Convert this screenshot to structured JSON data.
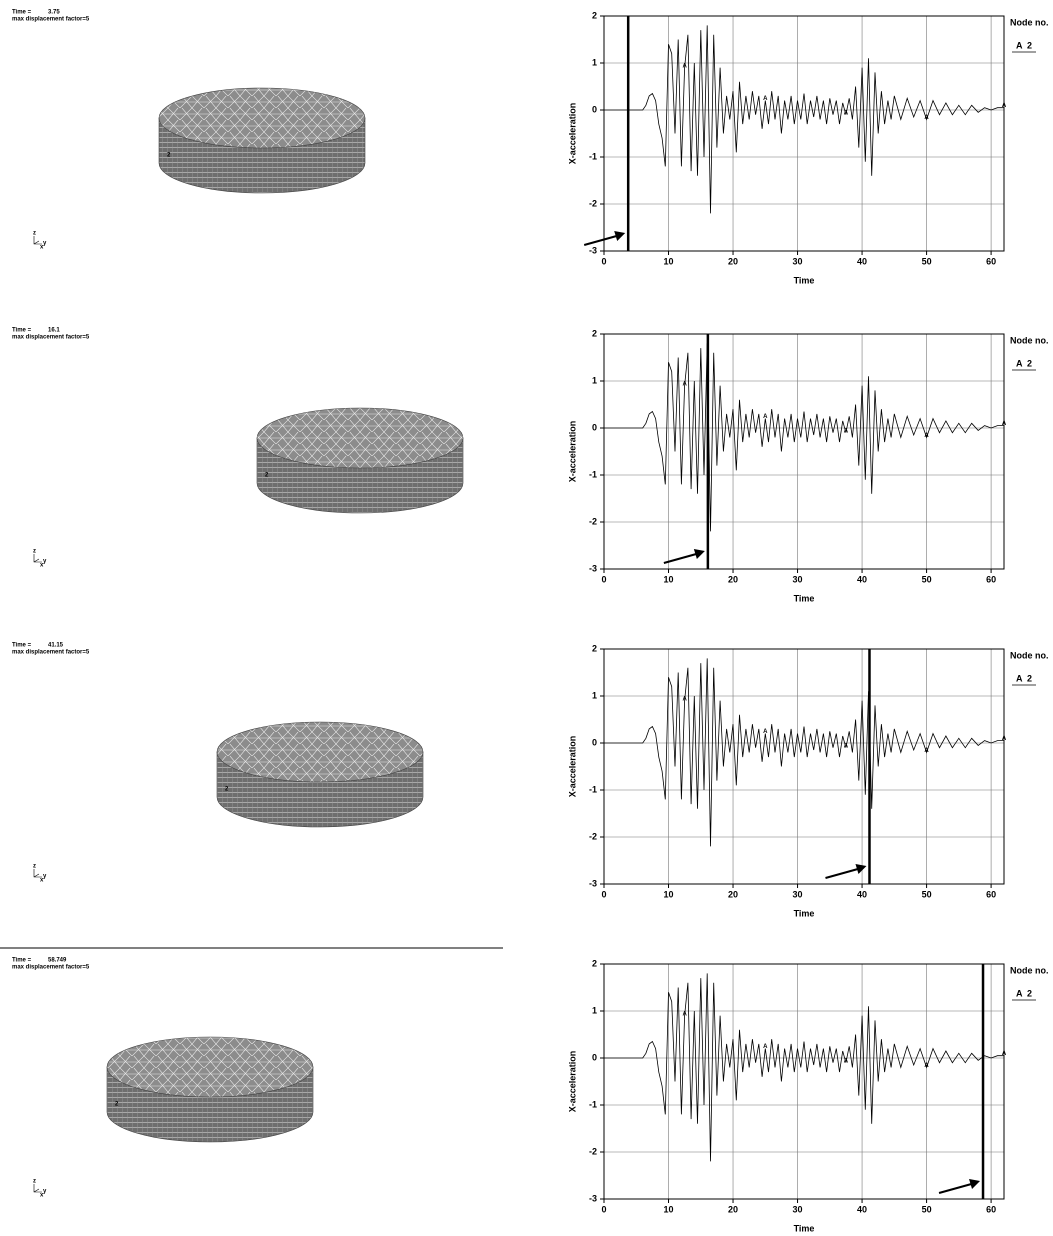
{
  "views": [
    {
      "time_label": "Time =",
      "factor_label": "max displacement factor=5",
      "node_label": "2",
      "triad": [
        "z",
        "y",
        "x"
      ]
    },
    {
      "time_label": "Time =",
      "factor_label": "max displacement factor=5",
      "node_label": "2",
      "triad": [
        "z",
        "y",
        "x"
      ]
    },
    {
      "time_label": "Time =",
      "factor_label": "max displacement factor=5",
      "node_label": "2",
      "triad": [
        "z",
        "y",
        "x"
      ]
    },
    {
      "time_label": "Time =",
      "factor_label": "max displacement factor=5",
      "node_label": "2",
      "triad": [
        "z",
        "y",
        "x"
      ]
    }
  ],
  "chart_data": [
    {
      "type": "line",
      "xlabel": "Time",
      "ylabel": "X-acceleration",
      "legend_title": "Node no.",
      "marker": "A",
      "time_marker": 3.75,
      "xlim": [
        0,
        62
      ],
      "ylim": [
        -3,
        2
      ],
      "xticks": [
        0,
        10,
        20,
        30,
        40,
        50,
        60
      ],
      "yticks": [
        -3,
        -2,
        -1,
        0,
        1,
        2
      ],
      "grid": true,
      "x": [
        0,
        2,
        4,
        6,
        6.5,
        7,
        7.5,
        8,
        8.5,
        9,
        9.5,
        10,
        10.5,
        11,
        11.5,
        12,
        12.5,
        13,
        13.5,
        14,
        14.5,
        15,
        15.5,
        16,
        16.5,
        17,
        17.5,
        18,
        18.5,
        19,
        19.5,
        20,
        20.5,
        21,
        21.5,
        22,
        22.5,
        23,
        23.5,
        24,
        24.5,
        25,
        25.5,
        26,
        26.5,
        27,
        27.5,
        28,
        28.5,
        29,
        29.5,
        30,
        30.5,
        31,
        31.5,
        32,
        32.5,
        33,
        33.5,
        34,
        34.5,
        35,
        35.5,
        36,
        36.5,
        37,
        37.5,
        38,
        38.5,
        39,
        39.5,
        40,
        40.5,
        41,
        41.5,
        42,
        42.5,
        43,
        43.5,
        44,
        44.5,
        45,
        46,
        47,
        48,
        49,
        50,
        51,
        52,
        53,
        54,
        55,
        56,
        57,
        58,
        59,
        60,
        61,
        62
      ],
      "series": [
        {
          "name": "2",
          "color": "#000000",
          "values": [
            0,
            0,
            0,
            0,
            0.1,
            0.3,
            0.35,
            0.2,
            -0.3,
            -0.6,
            -1.2,
            1.4,
            1.2,
            -0.5,
            1.5,
            -1.2,
            0.9,
            1.6,
            -1.3,
            1.0,
            -1.4,
            1.7,
            -1.0,
            1.8,
            -2.2,
            1.6,
            -0.8,
            0.9,
            -0.5,
            0.3,
            -0.2,
            0.4,
            -0.9,
            0.6,
            -0.3,
            0.3,
            -0.2,
            0.4,
            -0.1,
            0.3,
            -0.4,
            0.2,
            -0.3,
            0.4,
            -0.2,
            0.3,
            -0.5,
            0.2,
            -0.2,
            0.3,
            -0.3,
            0.2,
            -0.2,
            0.35,
            -0.3,
            0.2,
            -0.15,
            0.3,
            -0.2,
            0.2,
            -0.3,
            0.25,
            -0.1,
            0.2,
            -0.3,
            0.15,
            -0.1,
            0.25,
            -0.2,
            0.5,
            -0.8,
            0.9,
            -1.1,
            1.1,
            -1.4,
            0.8,
            -0.5,
            0.4,
            -0.3,
            0.2,
            -0.2,
            0.3,
            -0.2,
            0.25,
            -0.15,
            0.2,
            -0.2,
            0.2,
            -0.1,
            0.15,
            -0.1,
            0.1,
            -0.1,
            0.1,
            -0.05,
            0.05,
            0,
            0.05,
            0.05
          ]
        }
      ]
    },
    {
      "type": "line",
      "xlabel": "Time",
      "ylabel": "X-acceleration",
      "legend_title": "Node no.",
      "marker": "A",
      "time_marker": 16.1,
      "xlim": [
        0,
        62
      ],
      "ylim": [
        -3,
        2
      ],
      "xticks": [
        0,
        10,
        20,
        30,
        40,
        50,
        60
      ],
      "yticks": [
        -3,
        -2,
        -1,
        0,
        1,
        2
      ],
      "grid": true,
      "x": [
        0,
        2,
        4,
        6,
        6.5,
        7,
        7.5,
        8,
        8.5,
        9,
        9.5,
        10,
        10.5,
        11,
        11.5,
        12,
        12.5,
        13,
        13.5,
        14,
        14.5,
        15,
        15.5,
        16,
        16.5,
        17,
        17.5,
        18,
        18.5,
        19,
        19.5,
        20,
        20.5,
        21,
        21.5,
        22,
        22.5,
        23,
        23.5,
        24,
        24.5,
        25,
        25.5,
        26,
        26.5,
        27,
        27.5,
        28,
        28.5,
        29,
        29.5,
        30,
        30.5,
        31,
        31.5,
        32,
        32.5,
        33,
        33.5,
        34,
        34.5,
        35,
        35.5,
        36,
        36.5,
        37,
        37.5,
        38,
        38.5,
        39,
        39.5,
        40,
        40.5,
        41,
        41.5,
        42,
        42.5,
        43,
        43.5,
        44,
        44.5,
        45,
        46,
        47,
        48,
        49,
        50,
        51,
        52,
        53,
        54,
        55,
        56,
        57,
        58,
        59,
        60,
        61,
        62
      ],
      "series": [
        {
          "name": "2",
          "color": "#000000",
          "values": [
            0,
            0,
            0,
            0,
            0.1,
            0.3,
            0.35,
            0.2,
            -0.3,
            -0.6,
            -1.2,
            1.4,
            1.2,
            -0.5,
            1.5,
            -1.2,
            0.9,
            1.6,
            -1.3,
            1.0,
            -1.4,
            1.7,
            -1.0,
            1.8,
            -2.2,
            1.6,
            -0.8,
            0.9,
            -0.5,
            0.3,
            -0.2,
            0.4,
            -0.9,
            0.6,
            -0.3,
            0.3,
            -0.2,
            0.4,
            -0.1,
            0.3,
            -0.4,
            0.2,
            -0.3,
            0.4,
            -0.2,
            0.3,
            -0.5,
            0.2,
            -0.2,
            0.3,
            -0.3,
            0.2,
            -0.2,
            0.35,
            -0.3,
            0.2,
            -0.15,
            0.3,
            -0.2,
            0.2,
            -0.3,
            0.25,
            -0.1,
            0.2,
            -0.3,
            0.15,
            -0.1,
            0.25,
            -0.2,
            0.5,
            -0.8,
            0.9,
            -1.1,
            1.1,
            -1.4,
            0.8,
            -0.5,
            0.4,
            -0.3,
            0.2,
            -0.2,
            0.3,
            -0.2,
            0.25,
            -0.15,
            0.2,
            -0.2,
            0.2,
            -0.1,
            0.15,
            -0.1,
            0.1,
            -0.1,
            0.1,
            -0.05,
            0.05,
            0,
            0.05,
            0.05
          ]
        }
      ]
    },
    {
      "type": "line",
      "xlabel": "Time",
      "ylabel": "X-acceleration",
      "legend_title": "Node no.",
      "marker": "A",
      "time_marker": 41.15,
      "xlim": [
        0,
        62
      ],
      "ylim": [
        -3,
        2
      ],
      "xticks": [
        0,
        10,
        20,
        30,
        40,
        50,
        60
      ],
      "yticks": [
        -3,
        -2,
        -1,
        0,
        1,
        2
      ],
      "grid": true,
      "x": [
        0,
        2,
        4,
        6,
        6.5,
        7,
        7.5,
        8,
        8.5,
        9,
        9.5,
        10,
        10.5,
        11,
        11.5,
        12,
        12.5,
        13,
        13.5,
        14,
        14.5,
        15,
        15.5,
        16,
        16.5,
        17,
        17.5,
        18,
        18.5,
        19,
        19.5,
        20,
        20.5,
        21,
        21.5,
        22,
        22.5,
        23,
        23.5,
        24,
        24.5,
        25,
        25.5,
        26,
        26.5,
        27,
        27.5,
        28,
        28.5,
        29,
        29.5,
        30,
        30.5,
        31,
        31.5,
        32,
        32.5,
        33,
        33.5,
        34,
        34.5,
        35,
        35.5,
        36,
        36.5,
        37,
        37.5,
        38,
        38.5,
        39,
        39.5,
        40,
        40.5,
        41,
        41.5,
        42,
        42.5,
        43,
        43.5,
        44,
        44.5,
        45,
        46,
        47,
        48,
        49,
        50,
        51,
        52,
        53,
        54,
        55,
        56,
        57,
        58,
        59,
        60,
        61,
        62
      ],
      "series": [
        {
          "name": "2",
          "color": "#000000",
          "values": [
            0,
            0,
            0,
            0,
            0.1,
            0.3,
            0.35,
            0.2,
            -0.3,
            -0.6,
            -1.2,
            1.4,
            1.2,
            -0.5,
            1.5,
            -1.2,
            0.9,
            1.6,
            -1.3,
            1.0,
            -1.4,
            1.7,
            -1.0,
            1.8,
            -2.2,
            1.6,
            -0.8,
            0.9,
            -0.5,
            0.3,
            -0.2,
            0.4,
            -0.9,
            0.6,
            -0.3,
            0.3,
            -0.2,
            0.4,
            -0.1,
            0.3,
            -0.4,
            0.2,
            -0.3,
            0.4,
            -0.2,
            0.3,
            -0.5,
            0.2,
            -0.2,
            0.3,
            -0.3,
            0.2,
            -0.2,
            0.35,
            -0.3,
            0.2,
            -0.15,
            0.3,
            -0.2,
            0.2,
            -0.3,
            0.25,
            -0.1,
            0.2,
            -0.3,
            0.15,
            -0.1,
            0.25,
            -0.2,
            0.5,
            -0.8,
            0.9,
            -1.1,
            1.1,
            -1.4,
            0.8,
            -0.5,
            0.4,
            -0.3,
            0.2,
            -0.2,
            0.3,
            -0.2,
            0.25,
            -0.15,
            0.2,
            -0.2,
            0.2,
            -0.1,
            0.15,
            -0.1,
            0.1,
            -0.1,
            0.1,
            -0.05,
            0.05,
            0,
            0.05,
            0.05
          ]
        }
      ]
    },
    {
      "type": "line",
      "xlabel": "Time",
      "ylabel": "X-acceleration",
      "legend_title": "Node no.",
      "marker": "A",
      "time_marker": 58.749,
      "xlim": [
        0,
        62
      ],
      "ylim": [
        -3,
        2
      ],
      "xticks": [
        0,
        10,
        20,
        30,
        40,
        50,
        60
      ],
      "yticks": [
        -3,
        -2,
        -1,
        0,
        1,
        2
      ],
      "grid": true,
      "x": [
        0,
        2,
        4,
        6,
        6.5,
        7,
        7.5,
        8,
        8.5,
        9,
        9.5,
        10,
        10.5,
        11,
        11.5,
        12,
        12.5,
        13,
        13.5,
        14,
        14.5,
        15,
        15.5,
        16,
        16.5,
        17,
        17.5,
        18,
        18.5,
        19,
        19.5,
        20,
        20.5,
        21,
        21.5,
        22,
        22.5,
        23,
        23.5,
        24,
        24.5,
        25,
        25.5,
        26,
        26.5,
        27,
        27.5,
        28,
        28.5,
        29,
        29.5,
        30,
        30.5,
        31,
        31.5,
        32,
        32.5,
        33,
        33.5,
        34,
        34.5,
        35,
        35.5,
        36,
        36.5,
        37,
        37.5,
        38,
        38.5,
        39,
        39.5,
        40,
        40.5,
        41,
        41.5,
        42,
        42.5,
        43,
        43.5,
        44,
        44.5,
        45,
        46,
        47,
        48,
        49,
        50,
        51,
        52,
        53,
        54,
        55,
        56,
        57,
        58,
        59,
        60,
        61,
        62
      ],
      "series": [
        {
          "name": "2",
          "color": "#000000",
          "values": [
            0,
            0,
            0,
            0,
            0.1,
            0.3,
            0.35,
            0.2,
            -0.3,
            -0.6,
            -1.2,
            1.4,
            1.2,
            -0.5,
            1.5,
            -1.2,
            0.9,
            1.6,
            -1.3,
            1.0,
            -1.4,
            1.7,
            -1.0,
            1.8,
            -2.2,
            1.6,
            -0.8,
            0.9,
            -0.5,
            0.3,
            -0.2,
            0.4,
            -0.9,
            0.6,
            -0.3,
            0.3,
            -0.2,
            0.4,
            -0.1,
            0.3,
            -0.4,
            0.2,
            -0.3,
            0.4,
            -0.2,
            0.3,
            -0.5,
            0.2,
            -0.2,
            0.3,
            -0.3,
            0.2,
            -0.2,
            0.35,
            -0.3,
            0.2,
            -0.15,
            0.3,
            -0.2,
            0.2,
            -0.3,
            0.25,
            -0.1,
            0.2,
            -0.3,
            0.15,
            -0.1,
            0.25,
            -0.2,
            0.5,
            -0.8,
            0.9,
            -1.1,
            1.1,
            -1.4,
            0.8,
            -0.5,
            0.4,
            -0.3,
            0.2,
            -0.2,
            0.3,
            -0.2,
            0.25,
            -0.15,
            0.2,
            -0.2,
            0.2,
            -0.1,
            0.15,
            -0.1,
            0.1,
            -0.1,
            0.1,
            -0.05,
            0.05,
            0,
            0.05,
            0.05
          ]
        }
      ]
    }
  ]
}
